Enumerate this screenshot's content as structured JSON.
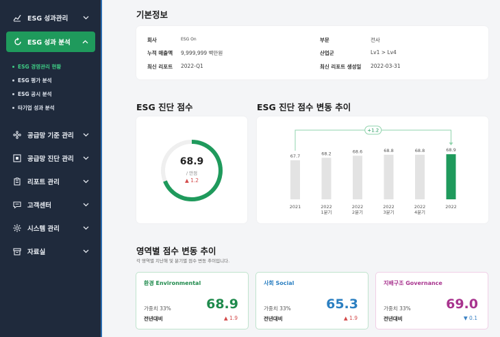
{
  "sidebar": {
    "items": [
      {
        "label": "ESG 성과관리",
        "icon": "line-chart-icon"
      },
      {
        "label": "ESG 성과 분석",
        "icon": "refresh-chart-icon",
        "active": true
      },
      {
        "label": "공급망 기준 관리",
        "icon": "network-icon"
      },
      {
        "label": "공급망 진단 관리",
        "icon": "diagnosis-icon"
      },
      {
        "label": "리포트 관리",
        "icon": "clipboard-icon"
      },
      {
        "label": "고객센터",
        "icon": "chat-icon"
      },
      {
        "label": "시스템 관리",
        "icon": "gear-icon"
      },
      {
        "label": "자료실",
        "icon": "archive-icon"
      }
    ],
    "sub_items": [
      {
        "label": "ESG 경영관리 현황",
        "active": true
      },
      {
        "label": "ESG 평가 분석"
      },
      {
        "label": "ESG 공시 분석"
      },
      {
        "label": "타기업 성과 분석"
      }
    ]
  },
  "basic_info": {
    "title": "기본정보",
    "rows": [
      {
        "k": "회사",
        "v": "ESG On"
      },
      {
        "k": "누적 매출액",
        "v": "9,999,999 백만원"
      },
      {
        "k": "최신 리포트",
        "v": "2022-Q1"
      },
      {
        "k": "부문",
        "v": "전사"
      },
      {
        "k": "산업군",
        "v": "Lv1 > Lv4"
      },
      {
        "k": "최신 리포트 생성일",
        "v": "2022-03-31"
      }
    ]
  },
  "score": {
    "title": "ESG 진단 점수",
    "value": "68.9",
    "unit": "/ 만점",
    "delta": "▲ 1.2",
    "fraction": 0.689
  },
  "trend": {
    "title": "ESG 진단 점수 변동 추이",
    "change_label": "+1.2"
  },
  "chart_data": {
    "type": "bar",
    "categories": [
      "2021",
      "2022 1분기",
      "2022 2분기",
      "2022 3분기",
      "2022 4분기",
      "2022"
    ],
    "tick_labels": [
      [
        "2021"
      ],
      [
        "2022",
        "1분기"
      ],
      [
        "2022",
        "2분기"
      ],
      [
        "2022",
        "3분기"
      ],
      [
        "2022",
        "4분기"
      ],
      [
        "2022"
      ]
    ],
    "values": [
      67.7,
      68.2,
      68.6,
      68.8,
      68.8,
      68.9
    ],
    "ylim": [
      60,
      70
    ],
    "highlight_index": 5,
    "colors": {
      "bar": "#e3e3e3",
      "highlight": "#1f9a5c"
    }
  },
  "area": {
    "title": "영역별 점수 변동 추이",
    "subtitle": "각 영역별 지난해 및 분기별 점수 변동 추이입니다.",
    "cards": [
      {
        "title": "환경 Environmental",
        "weight_label": "가중치 33%",
        "yoy_label": "전년대비",
        "value": "68.9",
        "delta": "▲ 1.9",
        "color": "#1f8a4c",
        "border": "#bfe3cd",
        "delta_color": "#d34a4a"
      },
      {
        "title": "사회 Social",
        "weight_label": "가중치 33%",
        "yoy_label": "전년대비",
        "value": "65.3",
        "delta": "▲ 1.9",
        "color": "#2b7fc1",
        "border": "#bfe3cd",
        "delta_color": "#d34a4a"
      },
      {
        "title": "지배구조 Governance",
        "weight_label": "가중치 33%",
        "yoy_label": "전년대비",
        "value": "69.0",
        "delta": "▼ 0.1",
        "color": "#a8338e",
        "border": "#f0cfe6",
        "delta_color": "#3b82c4"
      }
    ]
  }
}
